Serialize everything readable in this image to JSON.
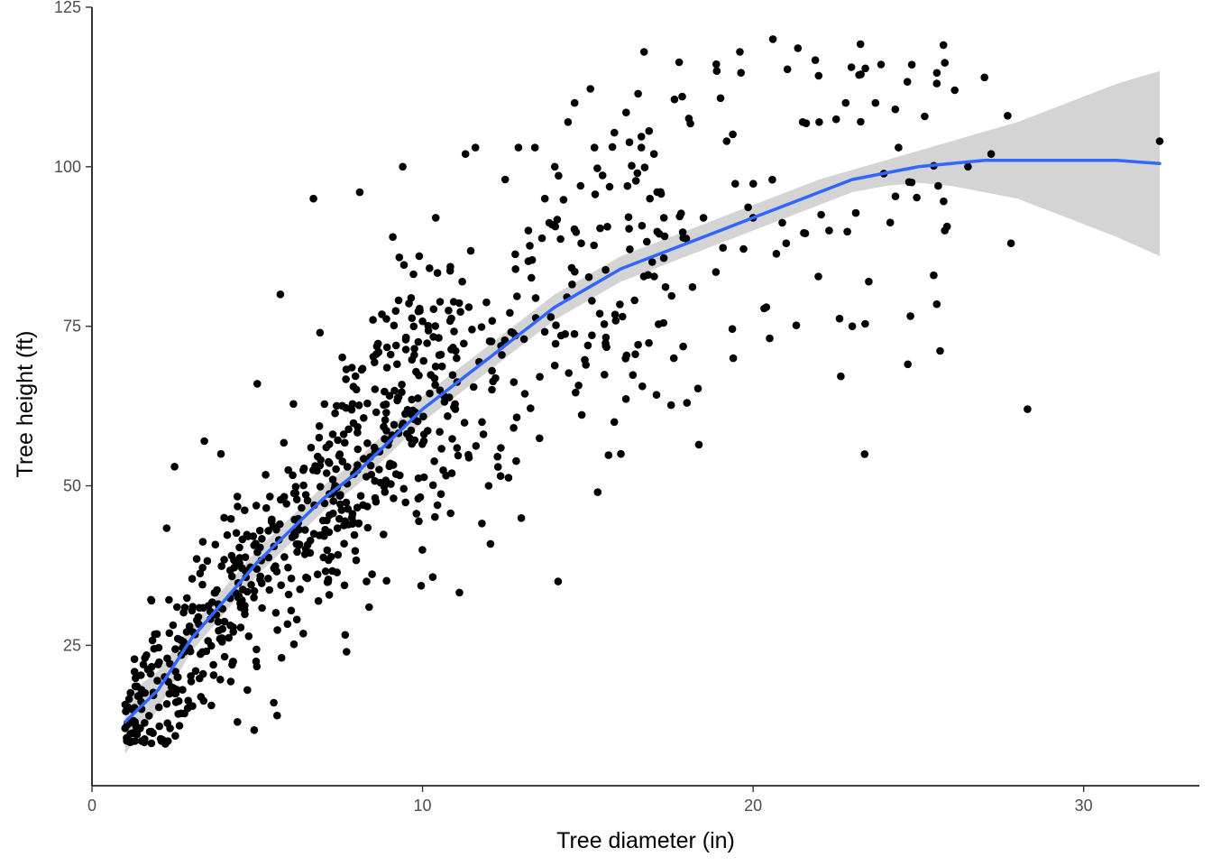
{
  "chart_data": {
    "type": "scatter",
    "title": "",
    "xlabel": "Tree diameter (in)",
    "ylabel": "Tree height (ft)",
    "xlim": [
      0,
      33.5
    ],
    "ylim": [
      3,
      125
    ],
    "x_ticks": [
      0,
      10,
      20,
      30
    ],
    "y_ticks": [
      25,
      50,
      75,
      100,
      125
    ],
    "grid": false,
    "legend": "none",
    "colors": {
      "points": "#000000",
      "smooth_line": "#3366FF",
      "confidence_band": "#cccccc",
      "axis": "#000000",
      "tick_labels": "#4d4d4d"
    },
    "highlighted_points": [
      {
        "x": 1.0,
        "y": 12
      },
      {
        "x": 1.3,
        "y": 10
      },
      {
        "x": 1.5,
        "y": 10
      },
      {
        "x": 1.3,
        "y": 13
      },
      {
        "x": 1.5,
        "y": 15
      },
      {
        "x": 1.6,
        "y": 23
      },
      {
        "x": 1.8,
        "y": 32
      },
      {
        "x": 2.0,
        "y": 22
      },
      {
        "x": 2.1,
        "y": 10
      },
      {
        "x": 2.3,
        "y": 10
      },
      {
        "x": 2.5,
        "y": 53
      },
      {
        "x": 2.8,
        "y": 24
      },
      {
        "x": 3.4,
        "y": 57
      },
      {
        "x": 3.9,
        "y": 55
      },
      {
        "x": 4.0,
        "y": 45
      },
      {
        "x": 4.4,
        "y": 13
      },
      {
        "x": 4.7,
        "y": 18
      },
      {
        "x": 5.0,
        "y": 66
      },
      {
        "x": 5.5,
        "y": 16
      },
      {
        "x": 5.6,
        "y": 14
      },
      {
        "x": 5.7,
        "y": 80
      },
      {
        "x": 6.7,
        "y": 95
      },
      {
        "x": 6.9,
        "y": 74
      },
      {
        "x": 7.7,
        "y": 24
      },
      {
        "x": 8.1,
        "y": 96
      },
      {
        "x": 8.2,
        "y": 47
      },
      {
        "x": 8.5,
        "y": 76
      },
      {
        "x": 9.1,
        "y": 89
      },
      {
        "x": 9.2,
        "y": 72
      },
      {
        "x": 9.4,
        "y": 100
      },
      {
        "x": 9.9,
        "y": 86
      },
      {
        "x": 10.4,
        "y": 92
      },
      {
        "x": 11.2,
        "y": 82
      },
      {
        "x": 11.4,
        "y": 78
      },
      {
        "x": 11.3,
        "y": 102
      },
      {
        "x": 11.6,
        "y": 103
      },
      {
        "x": 11.8,
        "y": 60
      },
      {
        "x": 12.0,
        "y": 50
      },
      {
        "x": 12.5,
        "y": 98
      },
      {
        "x": 12.9,
        "y": 103
      },
      {
        "x": 13.4,
        "y": 103
      },
      {
        "x": 13.2,
        "y": 90
      },
      {
        "x": 13.7,
        "y": 95
      },
      {
        "x": 14.0,
        "y": 100
      },
      {
        "x": 14.1,
        "y": 35
      },
      {
        "x": 14.4,
        "y": 107
      },
      {
        "x": 14.6,
        "y": 110
      },
      {
        "x": 14.8,
        "y": 88
      },
      {
        "x": 15.0,
        "y": 72
      },
      {
        "x": 15.2,
        "y": 103
      },
      {
        "x": 15.3,
        "y": 49
      },
      {
        "x": 15.8,
        "y": 60
      },
      {
        "x": 16.0,
        "y": 55
      },
      {
        "x": 16.5,
        "y": 99
      },
      {
        "x": 16.7,
        "y": 118
      },
      {
        "x": 17.0,
        "y": 102
      },
      {
        "x": 17.3,
        "y": 92
      },
      {
        "x": 17.6,
        "y": 70
      },
      {
        "x": 18.0,
        "y": 63
      },
      {
        "x": 18.5,
        "y": 92
      },
      {
        "x": 18.9,
        "y": 115
      },
      {
        "x": 19.2,
        "y": 104
      },
      {
        "x": 19.4,
        "y": 70
      },
      {
        "x": 19.6,
        "y": 118
      },
      {
        "x": 20.0,
        "y": 92
      },
      {
        "x": 20.4,
        "y": 78
      },
      {
        "x": 20.6,
        "y": 120
      },
      {
        "x": 21.0,
        "y": 88
      },
      {
        "x": 21.5,
        "y": 107
      },
      {
        "x": 22.0,
        "y": 107
      },
      {
        "x": 22.3,
        "y": 90
      },
      {
        "x": 22.8,
        "y": 110
      },
      {
        "x": 23.0,
        "y": 75
      },
      {
        "x": 23.5,
        "y": 82
      },
      {
        "x": 23.7,
        "y": 110
      },
      {
        "x": 24.3,
        "y": 109
      },
      {
        "x": 24.4,
        "y": 103
      },
      {
        "x": 24.8,
        "y": 116
      },
      {
        "x": 25.6,
        "y": 97
      },
      {
        "x": 25.8,
        "y": 90
      },
      {
        "x": 26.1,
        "y": 112
      },
      {
        "x": 26.5,
        "y": 100
      },
      {
        "x": 27.0,
        "y": 114
      },
      {
        "x": 27.2,
        "y": 102
      },
      {
        "x": 27.7,
        "y": 108
      },
      {
        "x": 27.8,
        "y": 88
      },
      {
        "x": 28.3,
        "y": 62
      },
      {
        "x": 32.3,
        "y": 104
      }
    ],
    "series": [
      {
        "x": [
          1.0,
          2.0,
          3.0,
          4.0,
          5.0,
          6.0,
          7.0,
          8.0,
          9.0,
          10.0,
          11.0,
          12.0,
          13.0,
          14.0,
          15.0,
          16.0,
          17.0,
          18.0,
          19.0,
          20.0,
          21.0,
          22.0,
          23.0,
          24.0,
          25.0,
          26.0,
          27.0,
          28.0,
          29.0,
          30.0,
          31.0,
          32.3
        ],
        "y": [
          13,
          18,
          26,
          32,
          38,
          43,
          48,
          52,
          57,
          62,
          66,
          70,
          74,
          78,
          81,
          84,
          86,
          88,
          90,
          92,
          94,
          96,
          98,
          99,
          100,
          100.5,
          101,
          101,
          101,
          101,
          101,
          100.5
        ],
        "ci_lower": [
          8,
          15,
          24,
          30,
          36,
          41,
          46,
          50,
          55,
          60,
          64,
          68,
          72,
          76,
          79,
          82,
          84,
          86,
          88,
          90,
          92,
          94,
          96,
          97,
          97.5,
          97,
          96,
          95,
          93,
          91,
          89,
          86
        ],
        "ci_upper": [
          17,
          21,
          28,
          34,
          40,
          45,
          50,
          54,
          59,
          64,
          68,
          72,
          76,
          80,
          83,
          86,
          88,
          90,
          92,
          94,
          96,
          98,
          99.5,
          101,
          102.5,
          104,
          105.5,
          107,
          109,
          111,
          113,
          115
        ]
      }
    ]
  }
}
